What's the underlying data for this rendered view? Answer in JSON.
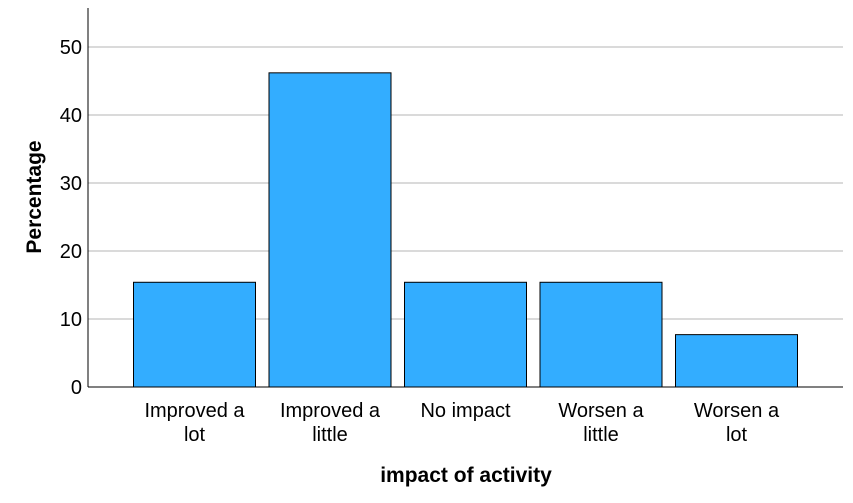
{
  "chart_data": {
    "type": "bar",
    "categories": [
      [
        "Improved a",
        "lot"
      ],
      [
        "Improved a",
        "little"
      ],
      [
        "No impact"
      ],
      [
        "Worsen a",
        "little"
      ],
      [
        "Worsen a",
        "lot"
      ]
    ],
    "values": [
      15.4,
      46.2,
      15.4,
      15.4,
      7.7
    ],
    "xlabel": "impact of activity",
    "ylabel": "Percentage",
    "ylim": [
      0,
      55
    ],
    "yticks": [
      0,
      10,
      20,
      30,
      40,
      50
    ],
    "grid": true,
    "legend": "none",
    "bar_color": "#33adff",
    "grid_color": "#b4b4b4"
  }
}
